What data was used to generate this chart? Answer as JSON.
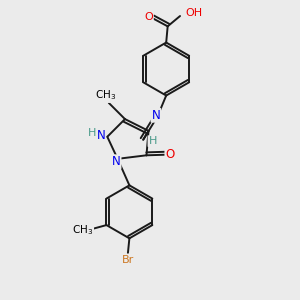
{
  "bg_color": "#ebebeb",
  "atom_colors": {
    "C": "#000000",
    "H": "#4a9a8a",
    "N": "#0000ee",
    "O": "#ee0000",
    "Br": "#cc7722"
  },
  "bond_color": "#1a1a1a",
  "figsize": [
    3.0,
    3.0
  ],
  "dpi": 100,
  "lw": 1.4
}
